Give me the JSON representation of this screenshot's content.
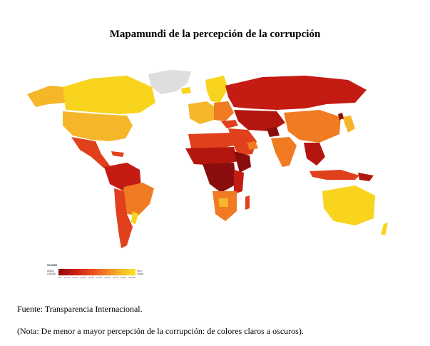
{
  "title": "Mapamundi de la percepción de la corrupción",
  "legend": {
    "title": "SCORE",
    "low_label": "Highly Corrupt",
    "high_label": "Very Clean",
    "ticks": [
      "0-9",
      "10-19",
      "20-29",
      "30-39",
      "40-49",
      "50-59",
      "60-69",
      "70-79",
      "80-89",
      "90-100"
    ],
    "gradient": [
      "#8f0b0b",
      "#c41b12",
      "#e8431d",
      "#f07b22",
      "#f6b62a",
      "#fbe425"
    ]
  },
  "source": "Fuente: Transparencia Internacional.",
  "note": "(Nota: De menor a mayor percepción de la corrupción: de colores claros a oscuros).",
  "colors": {
    "no_data": "#dedede",
    "very_clean": "#f8d41f",
    "clean": "#f6b62a",
    "moderate": "#f07b22",
    "corrupt": "#e0401c",
    "highly_corrupt": "#b2160f",
    "extreme": "#8a0d0d"
  }
}
